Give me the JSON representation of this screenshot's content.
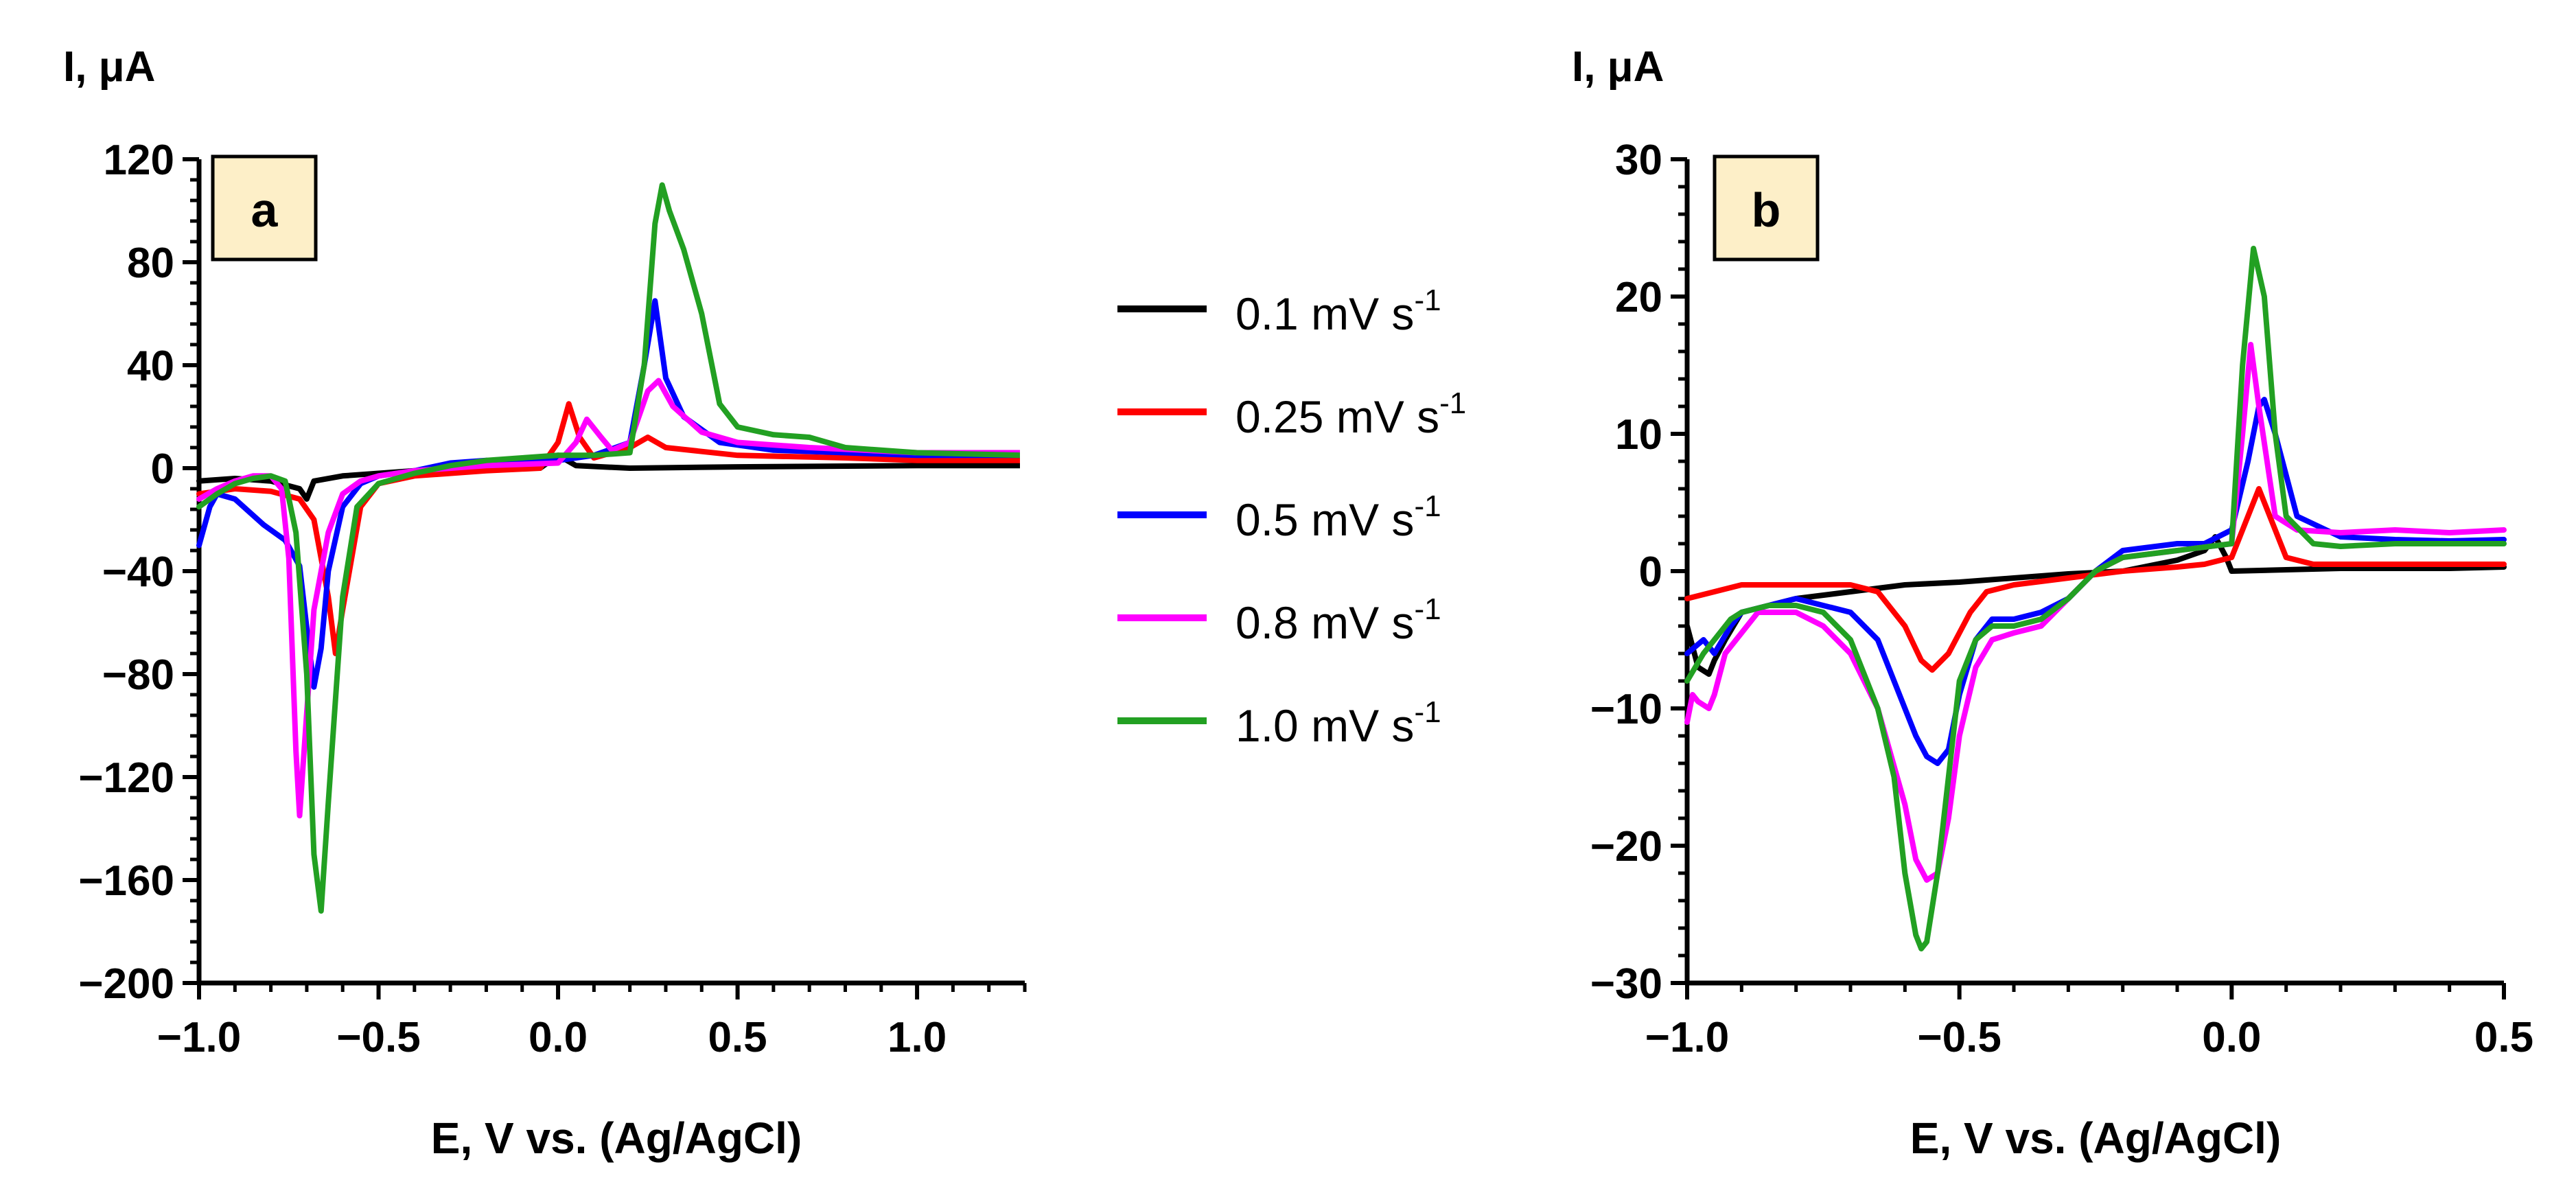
{
  "legend": {
    "items": [
      {
        "label": "0.1 mV s",
        "sup": "-1",
        "color": "#000000"
      },
      {
        "label": "0.25 mV s",
        "sup": "-1",
        "color": "#ff0000"
      },
      {
        "label": "0.5 mV s",
        "sup": "-1",
        "color": "#0000ff"
      },
      {
        "label": "0.8 mV s",
        "sup": "-1",
        "color": "#ff00ff"
      },
      {
        "label": "1.0 mV s",
        "sup": "-1",
        "color": "#22a022"
      }
    ]
  },
  "chart_data": [
    {
      "type": "line",
      "panel_label": "a",
      "ylabel": "I, μA",
      "xlabel": "E, V vs. (Ag/AgCl)",
      "xlim": [
        -1.0,
        1.3
      ],
      "ylim": [
        -200,
        120
      ],
      "xticks": [
        -1.0,
        -0.5,
        0.0,
        0.5,
        1.0
      ],
      "xtick_labels": [
        "−1.0",
        "−0.5",
        "0.0",
        "0.5",
        "1.0"
      ],
      "yticks": [
        120,
        80,
        40,
        0,
        -40,
        -80,
        -120,
        -160,
        -200
      ],
      "ytick_labels": [
        "120",
        "80",
        "40",
        "0",
        "−40",
        "−80",
        "−120",
        "−160",
        "−200"
      ],
      "series": [
        {
          "name": "0.1 mV s-1",
          "color": "#000000",
          "x": [
            -1.0,
            -0.9,
            -0.8,
            -0.72,
            -0.7,
            -0.68,
            -0.6,
            -0.4,
            -0.2,
            -0.05,
            0.0,
            0.05,
            0.2,
            0.5,
            1.0,
            1.3
          ],
          "y": [
            -5,
            -4,
            -5,
            -8,
            -12,
            -5,
            -3,
            -1,
            0,
            0,
            5,
            1,
            0,
            0.5,
            1,
            1
          ]
        },
        {
          "name": "0.25 mV s-1",
          "color": "#ff0000",
          "x": [
            -1.0,
            -0.9,
            -0.8,
            -0.72,
            -0.68,
            -0.64,
            -0.62,
            -0.6,
            -0.55,
            -0.5,
            -0.4,
            -0.2,
            -0.05,
            0.0,
            0.03,
            0.06,
            0.1,
            0.2,
            0.25,
            0.3,
            0.5,
            0.8,
            1.0,
            1.3
          ],
          "y": [
            -10,
            -8,
            -9,
            -12,
            -20,
            -50,
            -72,
            -55,
            -15,
            -6,
            -3,
            -1,
            0,
            10,
            25,
            12,
            4,
            8,
            12,
            8,
            5,
            4,
            3,
            3
          ]
        },
        {
          "name": "0.5 mV s-1",
          "color": "#0000ff",
          "x": [
            -1.0,
            -0.97,
            -0.95,
            -0.9,
            -0.82,
            -0.76,
            -0.72,
            -0.7,
            -0.68,
            -0.66,
            -0.64,
            -0.6,
            -0.55,
            -0.5,
            -0.4,
            -0.3,
            -0.2,
            -0.1,
            0.0,
            0.1,
            0.2,
            0.24,
            0.27,
            0.3,
            0.35,
            0.45,
            0.6,
            0.8,
            1.0,
            1.3
          ],
          "y": [
            -30,
            -15,
            -10,
            -12,
            -22,
            -28,
            -38,
            -62,
            -85,
            -70,
            -40,
            -15,
            -6,
            -3,
            -1,
            2,
            3,
            2,
            3,
            5,
            10,
            40,
            65,
            35,
            20,
            10,
            7,
            6,
            5,
            5
          ]
        },
        {
          "name": "0.8 mV s-1",
          "color": "#ff00ff",
          "x": [
            -1.0,
            -0.95,
            -0.9,
            -0.85,
            -0.8,
            -0.77,
            -0.75,
            -0.73,
            -0.72,
            -0.7,
            -0.68,
            -0.64,
            -0.6,
            -0.55,
            -0.5,
            -0.4,
            -0.2,
            0.0,
            0.05,
            0.08,
            0.12,
            0.15,
            0.2,
            0.25,
            0.28,
            0.32,
            0.4,
            0.5,
            0.7,
            1.0,
            1.3
          ],
          "y": [
            -12,
            -8,
            -5,
            -3,
            -3,
            -8,
            -35,
            -110,
            -135,
            -95,
            -55,
            -25,
            -10,
            -5,
            -3,
            -1,
            1,
            2,
            10,
            19,
            12,
            7,
            10,
            30,
            34,
            24,
            14,
            10,
            8,
            6,
            6
          ]
        },
        {
          "name": "1.0 mV s-1",
          "color": "#22a022",
          "x": [
            -1.0,
            -0.95,
            -0.9,
            -0.85,
            -0.8,
            -0.76,
            -0.73,
            -0.7,
            -0.68,
            -0.66,
            -0.64,
            -0.6,
            -0.56,
            -0.5,
            -0.4,
            -0.3,
            -0.2,
            -0.1,
            0.0,
            0.1,
            0.2,
            0.24,
            0.27,
            0.29,
            0.31,
            0.35,
            0.4,
            0.45,
            0.5,
            0.6,
            0.7,
            0.8,
            1.0,
            1.3
          ],
          "y": [
            -15,
            -10,
            -6,
            -4,
            -3,
            -5,
            -25,
            -80,
            -150,
            -172,
            -130,
            -50,
            -15,
            -6,
            -2,
            1,
            3,
            4,
            5,
            5,
            6,
            40,
            95,
            110,
            100,
            85,
            60,
            25,
            16,
            13,
            12,
            8,
            6,
            5
          ]
        }
      ]
    },
    {
      "type": "line",
      "panel_label": "b",
      "ylabel": "I, μA",
      "xlabel": "E, V vs. (Ag/AgCl)",
      "xlim": [
        -1.0,
        0.5
      ],
      "ylim": [
        -30,
        30
      ],
      "xticks": [
        -1.0,
        -0.5,
        0.0,
        0.5
      ],
      "xtick_labels": [
        "−1.0",
        "−0.5",
        "0.0",
        "0.5"
      ],
      "yticks": [
        30,
        20,
        10,
        0,
        -10,
        -20,
        -30
      ],
      "ytick_labels": [
        "30",
        "20",
        "10",
        "0",
        "−10",
        "−20",
        "−30"
      ],
      "series": [
        {
          "name": "0.1 mV s-1",
          "color": "#000000",
          "x": [
            -1.0,
            -0.98,
            -0.96,
            -0.95,
            -0.93,
            -0.9,
            -0.8,
            -0.7,
            -0.6,
            -0.5,
            -0.4,
            -0.3,
            -0.2,
            -0.1,
            -0.05,
            -0.03,
            -0.01,
            0.0,
            0.1,
            0.2,
            0.3,
            0.4,
            0.5
          ],
          "y": [
            -4,
            -7,
            -7.5,
            -6.5,
            -5,
            -3,
            -2,
            -1.5,
            -1,
            -0.8,
            -0.5,
            -0.2,
            0,
            0.8,
            1.5,
            2.5,
            1,
            0,
            0.1,
            0.2,
            0.2,
            0.2,
            0.3
          ]
        },
        {
          "name": "0.25 mV s-1",
          "color": "#ff0000",
          "x": [
            -1.0,
            -0.95,
            -0.9,
            -0.8,
            -0.7,
            -0.65,
            -0.6,
            -0.57,
            -0.55,
            -0.52,
            -0.48,
            -0.45,
            -0.4,
            -0.3,
            -0.2,
            -0.1,
            -0.05,
            0.0,
            0.03,
            0.05,
            0.07,
            0.1,
            0.15,
            0.3,
            0.5
          ],
          "y": [
            -2,
            -1.5,
            -1,
            -1,
            -1,
            -1.5,
            -4,
            -6.5,
            -7.2,
            -6,
            -3,
            -1.5,
            -1,
            -0.5,
            0,
            0.3,
            0.5,
            1,
            4,
            6,
            4,
            1,
            0.5,
            0.5,
            0.5
          ]
        },
        {
          "name": "0.5 mV s-1",
          "color": "#0000ff",
          "x": [
            -1.0,
            -0.97,
            -0.95,
            -0.92,
            -0.9,
            -0.85,
            -0.8,
            -0.7,
            -0.65,
            -0.6,
            -0.58,
            -0.56,
            -0.54,
            -0.52,
            -0.5,
            -0.47,
            -0.44,
            -0.4,
            -0.35,
            -0.3,
            -0.25,
            -0.2,
            -0.1,
            -0.05,
            0.0,
            0.03,
            0.05,
            0.06,
            0.08,
            0.12,
            0.2,
            0.3,
            0.4,
            0.5
          ],
          "y": [
            -6,
            -5,
            -6,
            -4,
            -3,
            -2.5,
            -2,
            -3,
            -5,
            -10,
            -12,
            -13.5,
            -14,
            -13,
            -9,
            -5,
            -3.5,
            -3.5,
            -3,
            -2,
            0,
            1.5,
            2,
            2,
            3,
            8,
            12,
            12.5,
            10,
            4,
            2.5,
            2.3,
            2.2,
            2.3
          ]
        },
        {
          "name": "0.8 mV s-1",
          "color": "#ff00ff",
          "x": [
            -1.0,
            -0.99,
            -0.98,
            -0.96,
            -0.95,
            -0.93,
            -0.9,
            -0.87,
            -0.8,
            -0.75,
            -0.7,
            -0.65,
            -0.6,
            -0.58,
            -0.56,
            -0.54,
            -0.52,
            -0.5,
            -0.47,
            -0.44,
            -0.4,
            -0.35,
            -0.3,
            -0.25,
            -0.2,
            -0.1,
            0.0,
            0.02,
            0.035,
            0.05,
            0.08,
            0.12,
            0.2,
            0.3,
            0.4,
            0.5
          ],
          "y": [
            -11,
            -9,
            -9.5,
            -10,
            -9,
            -6,
            -4.5,
            -3,
            -3,
            -4,
            -6,
            -10,
            -17,
            -21,
            -22.5,
            -22,
            -18,
            -12,
            -7,
            -5,
            -4.5,
            -4,
            -2,
            0,
            1,
            1.5,
            2,
            10,
            16.5,
            12,
            4,
            3,
            2.8,
            3,
            2.8,
            3
          ]
        },
        {
          "name": "1.0 mV s-1",
          "color": "#22a022",
          "x": [
            -1.0,
            -0.97,
            -0.95,
            -0.92,
            -0.9,
            -0.85,
            -0.8,
            -0.75,
            -0.7,
            -0.65,
            -0.62,
            -0.6,
            -0.58,
            -0.57,
            -0.56,
            -0.54,
            -0.52,
            -0.5,
            -0.47,
            -0.44,
            -0.4,
            -0.35,
            -0.3,
            -0.25,
            -0.2,
            -0.1,
            0.0,
            0.02,
            0.04,
            0.06,
            0.08,
            0.1,
            0.15,
            0.2,
            0.3,
            0.4,
            0.5
          ],
          "y": [
            -8,
            -6,
            -5,
            -3.5,
            -3,
            -2.5,
            -2.5,
            -3,
            -5,
            -10,
            -15,
            -22,
            -26.5,
            -27.5,
            -27,
            -22,
            -15,
            -8,
            -5,
            -4,
            -4,
            -3.5,
            -2,
            0,
            1,
            1.5,
            2,
            15,
            23.5,
            20,
            10,
            4,
            2,
            1.8,
            2,
            2,
            2
          ]
        }
      ]
    }
  ]
}
